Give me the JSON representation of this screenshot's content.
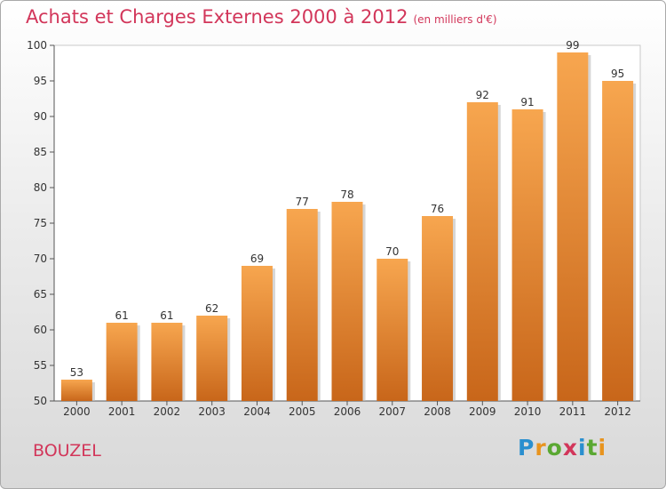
{
  "chart_data": {
    "type": "bar",
    "title": "Achats et Charges Externes 2000 à 2012",
    "subtitle": "(en milliers d'€)",
    "categories": [
      "2000",
      "2001",
      "2002",
      "2003",
      "2004",
      "2005",
      "2006",
      "2007",
      "2008",
      "2009",
      "2010",
      "2011",
      "2012"
    ],
    "values": [
      53,
      61,
      61,
      62,
      69,
      77,
      78,
      70,
      76,
      92,
      91,
      99,
      95
    ],
    "ylim": [
      50,
      100
    ],
    "yticks": [
      50,
      55,
      60,
      65,
      70,
      75,
      80,
      85,
      90,
      95,
      100
    ],
    "grid": false,
    "bar_color_top": "#f7a64f",
    "bar_color_bottom": "#c8661a"
  },
  "place_name": "BOUZEL",
  "logo": {
    "letters": [
      "P",
      "r",
      "o",
      "x",
      "i",
      "t",
      "i"
    ],
    "colors": [
      "#2a8fcf",
      "#e8941f",
      "#5aa832",
      "#d2365a",
      "#2a8fcf",
      "#5aa832",
      "#e8941f"
    ]
  }
}
